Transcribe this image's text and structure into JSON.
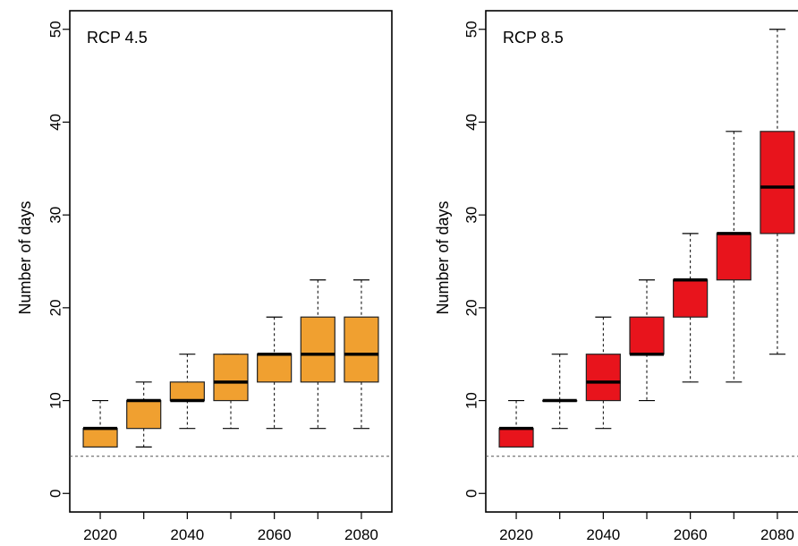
{
  "chart_data": [
    {
      "type": "boxplot",
      "annotation": "RCP 4.5",
      "ylabel": "Number of days",
      "xlabel": "",
      "ylim": [
        -2,
        52
      ],
      "xlim": [
        2013,
        2087
      ],
      "yticks": [
        0,
        10,
        20,
        30,
        40,
        50
      ],
      "xticks": [
        2020,
        2030,
        2040,
        2050,
        2060,
        2070,
        2080
      ],
      "xtick_labels": [
        "2020",
        "",
        "2040",
        "",
        "2060",
        "",
        "2080"
      ],
      "reference_line": 4,
      "box_color": "#f0a030",
      "boxes": [
        {
          "x": 2020,
          "min": 5,
          "q1": 5,
          "median": 7,
          "q3": 7,
          "max": 10
        },
        {
          "x": 2030,
          "min": 5,
          "q1": 7,
          "median": 10,
          "q3": 10,
          "max": 12
        },
        {
          "x": 2040,
          "min": 7,
          "q1": 10,
          "median": 10,
          "q3": 12,
          "max": 15
        },
        {
          "x": 2050,
          "min": 7,
          "q1": 10,
          "median": 12,
          "q3": 15,
          "max": 15
        },
        {
          "x": 2060,
          "min": 7,
          "q1": 12,
          "median": 15,
          "q3": 15,
          "max": 19
        },
        {
          "x": 2070,
          "min": 7,
          "q1": 12,
          "median": 15,
          "q3": 19,
          "max": 23
        },
        {
          "x": 2080,
          "min": 7,
          "q1": 12,
          "median": 15,
          "q3": 19,
          "max": 23
        }
      ]
    },
    {
      "type": "boxplot",
      "annotation": "RCP 8.5",
      "ylabel": "Number of days",
      "xlabel": "",
      "ylim": [
        -2,
        52
      ],
      "xlim": [
        2013,
        2087
      ],
      "yticks": [
        0,
        10,
        20,
        30,
        40,
        50
      ],
      "xticks": [
        2020,
        2030,
        2040,
        2050,
        2060,
        2070,
        2080
      ],
      "xtick_labels": [
        "2020",
        "",
        "2040",
        "",
        "2060",
        "",
        "2080"
      ],
      "reference_line": 4,
      "box_color": "#e8141c",
      "boxes": [
        {
          "x": 2020,
          "min": 5,
          "q1": 5,
          "median": 7,
          "q3": 7,
          "max": 10
        },
        {
          "x": 2030,
          "min": 7,
          "q1": 10,
          "median": 10,
          "q3": 10,
          "max": 15
        },
        {
          "x": 2040,
          "min": 7,
          "q1": 10,
          "median": 12,
          "q3": 15,
          "max": 19
        },
        {
          "x": 2050,
          "min": 10,
          "q1": 15,
          "median": 15,
          "q3": 19,
          "max": 23
        },
        {
          "x": 2060,
          "min": 12,
          "q1": 19,
          "median": 23,
          "q3": 23,
          "max": 28
        },
        {
          "x": 2070,
          "min": 12,
          "q1": 23,
          "median": 28,
          "q3": 28,
          "max": 39
        },
        {
          "x": 2080,
          "min": 15,
          "q1": 28,
          "median": 33,
          "q3": 39,
          "max": 50
        }
      ]
    }
  ]
}
